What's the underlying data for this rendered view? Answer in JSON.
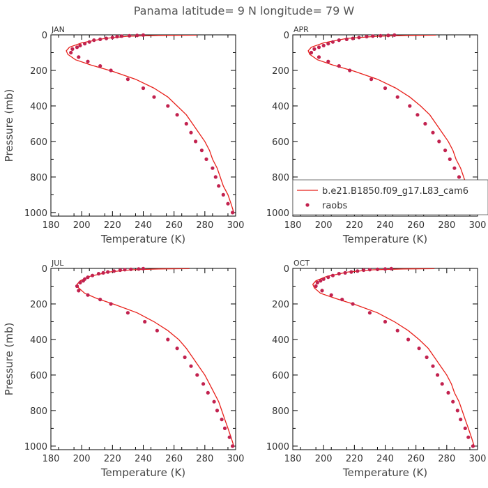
{
  "title": "Panama  latitude= 9 N longitude= 79 W",
  "colors": {
    "model_line": "#e8201a",
    "raobs_marker": "#c2224f",
    "axis": "#000000"
  },
  "chart_data": [
    {
      "type": "line",
      "panel": "JAN",
      "xlabel": "Temperature (K)",
      "ylabel": "Pressure (mb)",
      "xlim": [
        180,
        300
      ],
      "ylim": [
        1020,
        0
      ],
      "x_ticks": [
        180,
        200,
        220,
        240,
        260,
        280,
        300
      ],
      "y_ticks": [
        0,
        200,
        400,
        600,
        800,
        1000
      ],
      "series": [
        {
          "kind": "line",
          "points": [
            [
              275,
              1
            ],
            [
              250,
              3
            ],
            [
              230,
              8
            ],
            [
              215,
              20
            ],
            [
              200,
              45
            ],
            [
              192,
              70
            ],
            [
              190,
              90
            ],
            [
              191,
              110
            ],
            [
              196,
              140
            ],
            [
              206,
              170
            ],
            [
              220,
              205
            ],
            [
              235,
              250
            ],
            [
              247,
              300
            ],
            [
              256,
              350
            ],
            [
              262,
              400
            ],
            [
              268,
              450
            ],
            [
              272,
              500
            ],
            [
              276,
              550
            ],
            [
              280,
              600
            ],
            [
              283,
              650
            ],
            [
              285,
              700
            ],
            [
              288,
              750
            ],
            [
              290,
              800
            ],
            [
              292,
              850
            ],
            [
              295,
              900
            ],
            [
              297,
              950
            ],
            [
              299,
              1005
            ]
          ]
        },
        {
          "kind": "scatter",
          "points": [
            [
              240,
              1
            ],
            [
              236,
              3
            ],
            [
              231,
              5
            ],
            [
              226,
              7
            ],
            [
              223,
              10
            ],
            [
              220,
              15
            ],
            [
              216,
              20
            ],
            [
              212,
              25
            ],
            [
              208,
              30
            ],
            [
              205,
              40
            ],
            [
              202,
              50
            ],
            [
              199,
              60
            ],
            [
              197,
              70
            ],
            [
              194,
              80
            ],
            [
              193,
              100
            ],
            [
              198,
              125
            ],
            [
              204,
              150
            ],
            [
              212,
              175
            ],
            [
              219,
              200
            ],
            [
              230,
              250
            ],
            [
              240,
              300
            ],
            [
              247,
              350
            ],
            [
              256,
              400
            ],
            [
              262,
              450
            ],
            [
              268,
              500
            ],
            [
              271,
              550
            ],
            [
              274,
              600
            ],
            [
              278,
              650
            ],
            [
              281,
              700
            ],
            [
              285,
              750
            ],
            [
              287,
              800
            ],
            [
              289,
              850
            ],
            [
              292,
              900
            ],
            [
              295,
              950
            ],
            [
              298,
              1000
            ]
          ]
        }
      ]
    },
    {
      "type": "line",
      "panel": "APR",
      "xlabel": "Temperature (K)",
      "ylabel": "",
      "xlim": [
        180,
        300
      ],
      "ylim": [
        1020,
        0
      ],
      "x_ticks": [
        180,
        200,
        220,
        240,
        260,
        280,
        300
      ],
      "y_ticks": [
        0,
        200,
        400,
        600,
        800,
        1000
      ],
      "legend": {
        "placement": "bottom-right",
        "entries": [
          {
            "label": "b.e21.B1850.f09_g17.L83_cam6",
            "kind": "line"
          },
          {
            "label": "raobs",
            "kind": "marker"
          }
        ]
      },
      "series": [
        {
          "kind": "line",
          "points": [
            [
              273,
              1
            ],
            [
              255,
              3
            ],
            [
              235,
              8
            ],
            [
              215,
              20
            ],
            [
              200,
              45
            ],
            [
              192,
              70
            ],
            [
              190,
              90
            ],
            [
              191,
              110
            ],
            [
              196,
              140
            ],
            [
              206,
              170
            ],
            [
              220,
              205
            ],
            [
              235,
              250
            ],
            [
              247,
              300
            ],
            [
              256,
              350
            ],
            [
              263,
              400
            ],
            [
              269,
              450
            ],
            [
              273,
              500
            ],
            [
              277,
              550
            ],
            [
              281,
              600
            ],
            [
              284,
              650
            ],
            [
              286,
              700
            ],
            [
              289,
              750
            ],
            [
              291,
              800
            ],
            [
              293,
              850
            ],
            [
              295,
              900
            ],
            [
              297,
              950
            ],
            [
              300,
              1005
            ]
          ]
        },
        {
          "kind": "scatter",
          "points": [
            [
              246,
              1
            ],
            [
              242,
              3
            ],
            [
              237,
              5
            ],
            [
              232,
              7
            ],
            [
              228,
              10
            ],
            [
              223,
              15
            ],
            [
              219,
              20
            ],
            [
              215,
              25
            ],
            [
              210,
              30
            ],
            [
              206,
              40
            ],
            [
              203,
              50
            ],
            [
              200,
              60
            ],
            [
              197,
              70
            ],
            [
              194,
              80
            ],
            [
              192,
              100
            ],
            [
              197,
              125
            ],
            [
              203,
              150
            ],
            [
              210,
              175
            ],
            [
              217,
              200
            ],
            [
              231,
              250
            ],
            [
              240,
              300
            ],
            [
              248,
              350
            ],
            [
              256,
              400
            ],
            [
              261,
              450
            ],
            [
              266,
              500
            ],
            [
              271,
              550
            ],
            [
              275,
              600
            ],
            [
              279,
              650
            ],
            [
              282,
              700
            ],
            [
              285,
              750
            ],
            [
              288,
              800
            ],
            [
              290,
              850
            ],
            [
              292,
              900
            ],
            [
              295,
              950
            ],
            [
              298,
              1000
            ]
          ]
        }
      ]
    },
    {
      "type": "line",
      "panel": "JUL",
      "xlabel": "Temperature (K)",
      "ylabel": "Pressure (mb)",
      "xlim": [
        180,
        300
      ],
      "ylim": [
        1020,
        0
      ],
      "x_ticks": [
        180,
        200,
        220,
        240,
        260,
        280,
        300
      ],
      "y_ticks": [
        0,
        200,
        400,
        600,
        800,
        1000
      ],
      "series": [
        {
          "kind": "line",
          "points": [
            [
              270,
              1
            ],
            [
              250,
              3
            ],
            [
              232,
              8
            ],
            [
              218,
              20
            ],
            [
              205,
              45
            ],
            [
              199,
              70
            ],
            [
              197,
              90
            ],
            [
              198,
              110
            ],
            [
              202,
              140
            ],
            [
              210,
              170
            ],
            [
              222,
              205
            ],
            [
              236,
              250
            ],
            [
              247,
              300
            ],
            [
              256,
              350
            ],
            [
              263,
              400
            ],
            [
              268,
              450
            ],
            [
              272,
              500
            ],
            [
              276,
              550
            ],
            [
              280,
              600
            ],
            [
              283,
              650
            ],
            [
              286,
              700
            ],
            [
              289,
              750
            ],
            [
              291,
              800
            ],
            [
              293,
              850
            ],
            [
              295,
              900
            ],
            [
              297,
              950
            ],
            [
              299,
              1005
            ]
          ]
        },
        {
          "kind": "scatter",
          "points": [
            [
              240,
              1
            ],
            [
              237,
              3
            ],
            [
              232,
              5
            ],
            [
              228,
              7
            ],
            [
              225,
              10
            ],
            [
              221,
              15
            ],
            [
              217,
              20
            ],
            [
              214,
              25
            ],
            [
              211,
              30
            ],
            [
              207,
              40
            ],
            [
              204,
              50
            ],
            [
              202,
              60
            ],
            [
              201,
              70
            ],
            [
              199,
              80
            ],
            [
              197,
              100
            ],
            [
              198,
              125
            ],
            [
              204,
              150
            ],
            [
              212,
              175
            ],
            [
              219,
              200
            ],
            [
              230,
              250
            ],
            [
              241,
              300
            ],
            [
              249,
              350
            ],
            [
              256,
              400
            ],
            [
              262,
              450
            ],
            [
              267,
              500
            ],
            [
              271,
              550
            ],
            [
              275,
              600
            ],
            [
              279,
              650
            ],
            [
              282,
              700
            ],
            [
              286,
              750
            ],
            [
              288,
              800
            ],
            [
              291,
              850
            ],
            [
              293,
              900
            ],
            [
              296,
              950
            ],
            [
              298,
              1000
            ]
          ]
        }
      ]
    },
    {
      "type": "line",
      "panel": "OCT",
      "xlabel": "Temperature (K)",
      "ylabel": "",
      "xlim": [
        180,
        300
      ],
      "ylim": [
        1020,
        0
      ],
      "x_ticks": [
        180,
        200,
        220,
        240,
        260,
        280,
        300
      ],
      "y_ticks": [
        0,
        200,
        400,
        600,
        800,
        1000
      ],
      "series": [
        {
          "kind": "line",
          "points": [
            [
              272,
              1
            ],
            [
              252,
              3
            ],
            [
              232,
              8
            ],
            [
              216,
              20
            ],
            [
              202,
              45
            ],
            [
              195,
              70
            ],
            [
              193,
              90
            ],
            [
              194,
              110
            ],
            [
              198,
              140
            ],
            [
              208,
              170
            ],
            [
              221,
              205
            ],
            [
              235,
              250
            ],
            [
              246,
              300
            ],
            [
              255,
              350
            ],
            [
              262,
              400
            ],
            [
              268,
              450
            ],
            [
              272,
              500
            ],
            [
              276,
              550
            ],
            [
              280,
              600
            ],
            [
              283,
              650
            ],
            [
              285,
              700
            ],
            [
              288,
              750
            ],
            [
              290,
              800
            ],
            [
              292,
              850
            ],
            [
              294,
              900
            ],
            [
              296,
              950
            ],
            [
              298,
              1005
            ]
          ]
        },
        {
          "kind": "scatter",
          "points": [
            [
              244,
              1
            ],
            [
              240,
              3
            ],
            [
              235,
              5
            ],
            [
              230,
              7
            ],
            [
              226,
              10
            ],
            [
              222,
              15
            ],
            [
              218,
              20
            ],
            [
              214,
              25
            ],
            [
              210,
              30
            ],
            [
              206,
              40
            ],
            [
              203,
              50
            ],
            [
              200,
              60
            ],
            [
              198,
              70
            ],
            [
              196,
              80
            ],
            [
              195,
              100
            ],
            [
              199,
              125
            ],
            [
              205,
              150
            ],
            [
              212,
              175
            ],
            [
              219,
              200
            ],
            [
              230,
              250
            ],
            [
              240,
              300
            ],
            [
              248,
              350
            ],
            [
              255,
              400
            ],
            [
              262,
              450
            ],
            [
              267,
              500
            ],
            [
              271,
              550
            ],
            [
              274,
              600
            ],
            [
              277,
              650
            ],
            [
              281,
              700
            ],
            [
              284,
              750
            ],
            [
              287,
              800
            ],
            [
              289,
              850
            ],
            [
              292,
              900
            ],
            [
              294,
              950
            ],
            [
              297,
              1000
            ]
          ]
        }
      ]
    }
  ]
}
